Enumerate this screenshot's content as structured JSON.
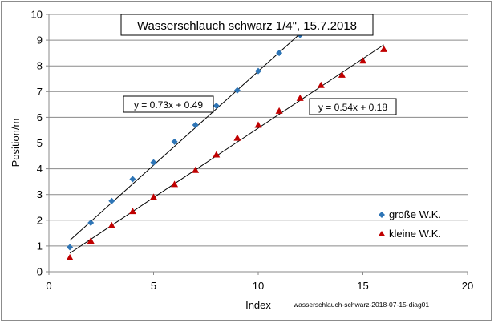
{
  "chart_data": {
    "type": "scatter",
    "title": "Wasserschlauch schwarz 1/4\", 15.7.2018",
    "xlabel": "Index",
    "ylabel": "Position/m",
    "footnote": "wasserschlauch-schwarz-2018-07-15-diag01",
    "xlim": [
      0,
      20
    ],
    "ylim": [
      0,
      10
    ],
    "xticks": [
      0,
      5,
      10,
      15,
      20
    ],
    "yticks": [
      0,
      1,
      2,
      3,
      4,
      5,
      6,
      7,
      8,
      9,
      10
    ],
    "grid": "horizontal",
    "legend_position": "right",
    "series": [
      {
        "name": "große W.K.",
        "marker": "diamond",
        "color": "#2e75b6",
        "x": [
          1,
          2,
          3,
          4,
          5,
          6,
          7,
          8,
          9,
          10,
          11,
          12
        ],
        "y": [
          0.95,
          1.9,
          2.75,
          3.6,
          4.25,
          5.05,
          5.7,
          6.45,
          7.05,
          7.8,
          8.5,
          9.2
        ],
        "trendline": {
          "slope": 0.73,
          "intercept": 0.49,
          "x_range": [
            1,
            12.2
          ],
          "label": "y = 0.73x + 0.49"
        }
      },
      {
        "name": "kleine W.K.",
        "marker": "triangle",
        "color": "#c00000",
        "x": [
          1,
          2,
          3,
          4,
          5,
          6,
          7,
          8,
          9,
          10,
          11,
          12,
          13,
          14,
          15,
          16
        ],
        "y": [
          0.55,
          1.2,
          1.8,
          2.35,
          2.9,
          3.4,
          3.95,
          4.55,
          5.2,
          5.7,
          6.25,
          6.75,
          7.25,
          7.65,
          8.2,
          8.65
        ],
        "trendline": {
          "slope": 0.54,
          "intercept": 0.18,
          "x_range": [
            1,
            16
          ],
          "label": "y = 0.54x + 0.18"
        }
      }
    ]
  }
}
